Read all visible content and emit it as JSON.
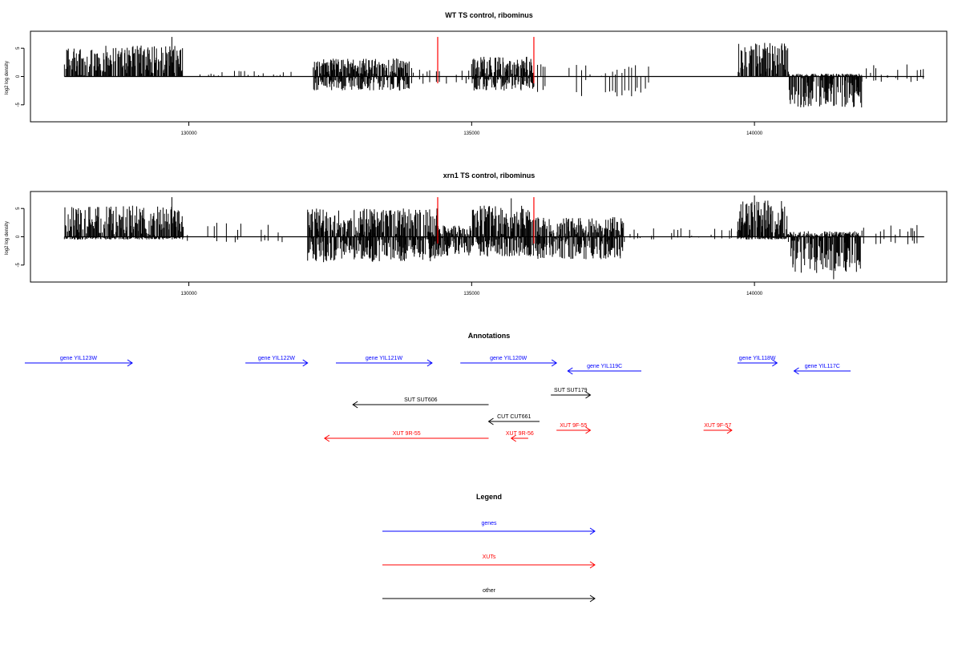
{
  "colors": {
    "gene": "#0000ff",
    "xut": "#ff0000",
    "other": "#000000",
    "marker": "#ff0000",
    "track": "#000000"
  },
  "chart_data": [
    {
      "type": "bar",
      "title": "WT TS control, ribominus",
      "ylabel": "log2 log density",
      "xlim": [
        127200,
        143400
      ],
      "ylim": [
        -8,
        8
      ],
      "xticks": [
        130000,
        135000,
        140000
      ],
      "yticks": [
        -5,
        0,
        5
      ],
      "markers_x": [
        134400,
        136100
      ],
      "grid": false,
      "segments": [
        {
          "from": 127800,
          "to": 129900,
          "fwd": [
            0,
            5.5
          ],
          "rev": [
            0,
            0
          ]
        },
        {
          "from": 129900,
          "to": 131900,
          "fwd": [
            0,
            1.0
          ],
          "rev": [
            0,
            0
          ],
          "sparse": true
        },
        {
          "from": 132200,
          "to": 133900,
          "fwd": [
            0,
            3.2
          ],
          "rev": [
            0,
            -2.5
          ]
        },
        {
          "from": 133900,
          "to": 135000,
          "fwd": [
            0,
            1.5
          ],
          "rev": [
            0,
            -1.5
          ],
          "sparse": true
        },
        {
          "from": 135000,
          "to": 136100,
          "fwd": [
            0,
            3.5
          ],
          "rev": [
            0,
            -2.5
          ]
        },
        {
          "from": 136100,
          "to": 138200,
          "fwd": [
            0,
            2.5
          ],
          "rev": [
            0,
            -3.5
          ],
          "sparse": true
        },
        {
          "from": 139700,
          "to": 140600,
          "fwd": [
            0,
            6.0
          ],
          "rev": [
            0,
            0
          ]
        },
        {
          "from": 140600,
          "to": 141900,
          "fwd": [
            0,
            0.5
          ],
          "rev": [
            0,
            -5.5
          ]
        },
        {
          "from": 141900,
          "to": 143000,
          "fwd": [
            0,
            2.5
          ],
          "rev": [
            0,
            -1.0
          ],
          "sparse": true
        }
      ],
      "peaks": [
        {
          "x": 129700,
          "y": 7
        },
        {
          "x": 141400,
          "y": -5.2
        }
      ]
    },
    {
      "type": "bar",
      "title": "xrn1 TS control, ribominus",
      "ylabel": "log2 log density",
      "xlim": [
        127200,
        143400
      ],
      "ylim": [
        -8,
        8
      ],
      "xticks": [
        130000,
        135000,
        140000
      ],
      "yticks": [
        -5,
        0,
        5
      ],
      "markers_x": [
        134400,
        136100
      ],
      "grid": false,
      "segments": [
        {
          "from": 127800,
          "to": 129900,
          "fwd": [
            0,
            5.5
          ],
          "rev": [
            0,
            -0.5
          ]
        },
        {
          "from": 129900,
          "to": 131900,
          "fwd": [
            0,
            2.5
          ],
          "rev": [
            0,
            -1.0
          ],
          "sparse": true
        },
        {
          "from": 132100,
          "to": 134400,
          "fwd": [
            0,
            5.0
          ],
          "rev": [
            0,
            -4.5
          ]
        },
        {
          "from": 134400,
          "to": 135000,
          "fwd": [
            0,
            2.0
          ],
          "rev": [
            0,
            -3.5
          ]
        },
        {
          "from": 135000,
          "to": 136100,
          "fwd": [
            0,
            5.5
          ],
          "rev": [
            0,
            -3.5
          ]
        },
        {
          "from": 136100,
          "to": 137700,
          "fwd": [
            0,
            3.5
          ],
          "rev": [
            0,
            -4.0
          ]
        },
        {
          "from": 137700,
          "to": 139700,
          "fwd": [
            0,
            1.5
          ],
          "rev": [
            0,
            -0.5
          ],
          "sparse": true
        },
        {
          "from": 139700,
          "to": 140600,
          "fwd": [
            0,
            6.5
          ],
          "rev": [
            0,
            -0.5
          ]
        },
        {
          "from": 140600,
          "to": 141900,
          "fwd": [
            0,
            1.0
          ],
          "rev": [
            0,
            -6.5
          ]
        },
        {
          "from": 141900,
          "to": 143000,
          "fwd": [
            0,
            2.5
          ],
          "rev": [
            0,
            -1.5
          ],
          "sparse": true
        }
      ],
      "peaks": [
        {
          "x": 129700,
          "y": 7
        },
        {
          "x": 135700,
          "y": 6.8
        },
        {
          "x": 140000,
          "y": 7.3
        },
        {
          "x": 141400,
          "y": -7.5
        }
      ]
    }
  ],
  "annotations": {
    "title": "Annotations",
    "features": [
      {
        "label": "gene YIL123W",
        "kind": "gene",
        "dir": "right",
        "x1": 127100,
        "x2": 129000,
        "row": 0
      },
      {
        "label": "gene YIL122W",
        "kind": "gene",
        "dir": "right",
        "x1": 131000,
        "x2": 132100,
        "row": 0
      },
      {
        "label": "gene YIL121W",
        "kind": "gene",
        "dir": "right",
        "x1": 132600,
        "x2": 134300,
        "row": 0
      },
      {
        "label": "gene YIL120W",
        "kind": "gene",
        "dir": "right",
        "x1": 134800,
        "x2": 136500,
        "row": 0
      },
      {
        "label": "gene YIL119C",
        "kind": "gene",
        "dir": "left",
        "x1": 136700,
        "x2": 138000,
        "row": 1
      },
      {
        "label": "gene YIL118W",
        "kind": "gene",
        "dir": "right",
        "x1": 139700,
        "x2": 140400,
        "row": 0
      },
      {
        "label": "gene YIL117C",
        "kind": "gene",
        "dir": "left",
        "x1": 140700,
        "x2": 141700,
        "row": 1
      },
      {
        "label": "SUT SUT179",
        "kind": "other",
        "dir": "right",
        "x1": 136400,
        "x2": 137100,
        "row": 2
      },
      {
        "label": "SUT SUT606",
        "kind": "other",
        "dir": "left",
        "x1": 132900,
        "x2": 135300,
        "row": 3
      },
      {
        "label": "CUT CUT661",
        "kind": "other",
        "dir": "left",
        "x1": 135300,
        "x2": 136200,
        "row": 4
      },
      {
        "label": "XUT 9F-55",
        "kind": "xut",
        "dir": "right",
        "x1": 136500,
        "x2": 137100,
        "row": 5
      },
      {
        "label": "XUT 9F-57",
        "kind": "xut",
        "dir": "right",
        "x1": 139100,
        "x2": 139600,
        "row": 5
      },
      {
        "label": "XUT 9R-55",
        "kind": "xut",
        "dir": "left",
        "x1": 132400,
        "x2": 135300,
        "row": 6
      },
      {
        "label": "XUT 9R-56",
        "kind": "xut",
        "dir": "left",
        "x1": 135700,
        "x2": 136000,
        "row": 6
      }
    ]
  },
  "legend": {
    "title": "Legend",
    "items": [
      {
        "label": "genes",
        "kind": "gene"
      },
      {
        "label": "XUTs",
        "kind": "xut"
      },
      {
        "label": "other",
        "kind": "other"
      }
    ]
  }
}
